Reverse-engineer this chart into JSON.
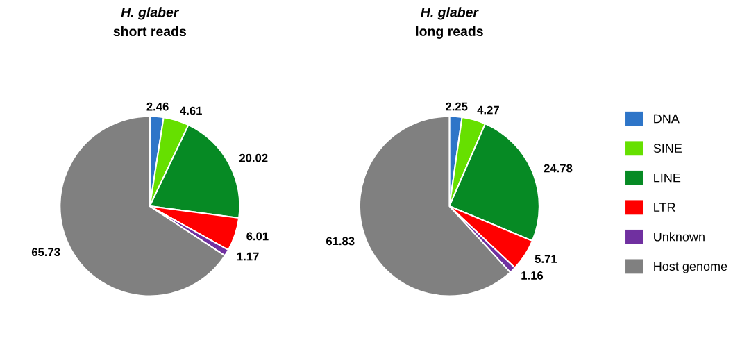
{
  "chart_data": [
    {
      "type": "pie",
      "title": "H. glaber\nshort reads",
      "categories": [
        "DNA",
        "SINE",
        "LINE",
        "LTR",
        "Unknown",
        "Host genome"
      ],
      "values": [
        2.46,
        4.61,
        20.02,
        6.01,
        1.17,
        65.73
      ],
      "colors": [
        "#2e75c8",
        "#66e000",
        "#068a24",
        "#ff0000",
        "#7030a0",
        "#808080"
      ],
      "data_labels": true,
      "legend": "right"
    },
    {
      "type": "pie",
      "title": "H. glaber\nlong reads",
      "categories": [
        null,
        null,
        null,
        null,
        null,
        null
      ],
      "values": [
        2.25,
        4.27,
        24.78,
        5.71,
        1.16,
        61.83
      ],
      "colors": [
        "#2e75c8",
        "#66e000",
        "#068a24",
        "#ff0000",
        "#7030a0",
        "#808080"
      ],
      "data_labels": true
    }
  ]
}
